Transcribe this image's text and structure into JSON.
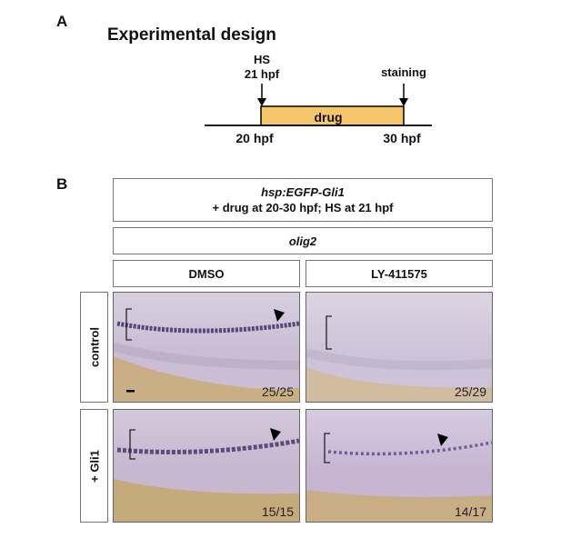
{
  "panel_a": {
    "letter": "A",
    "title": "Experimental design",
    "hs_line1": "HS",
    "hs_line2": "21 hpf",
    "staining": "staining",
    "drug": "drug",
    "start": "20 hpf",
    "end": "30 hpf",
    "drug_color": "#f5c66a"
  },
  "panel_b": {
    "letter": "B",
    "header_line1": "hsp:EGFP-Gli1",
    "header_line2": "+ drug at 20-30 hpf; HS at 21 hpf",
    "probe": "olig2",
    "col_dmso": "DMSO",
    "col_ly": "LY-411575",
    "row_control": "control",
    "row_gli1": "+ Gli1",
    "ratio_control_dmso": "25/25",
    "ratio_control_ly": "25/29",
    "ratio_gli1_dmso": "15/15",
    "ratio_gli1_ly": "14/17"
  }
}
